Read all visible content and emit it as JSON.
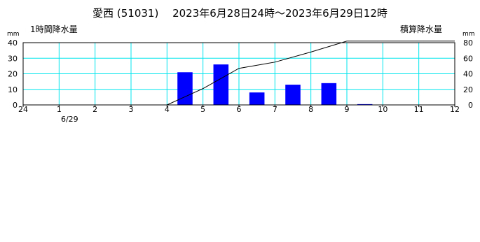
{
  "chart_data": {
    "type": "bar",
    "title": "愛西 (51031)　 2023年6月28日24時～2023年6月29日12時",
    "left_axis": {
      "unit": "mm",
      "label": "1時間降水量",
      "ticks": [
        0,
        10,
        20,
        30,
        40
      ],
      "ylim": [
        0,
        40
      ]
    },
    "right_axis": {
      "unit": "mm",
      "label": "積算降水量",
      "ticks": [
        0,
        20,
        40,
        60,
        80
      ],
      "ylim": [
        0,
        80
      ]
    },
    "x_tick_labels": [
      "24",
      "1",
      "2",
      "3",
      "4",
      "5",
      "6",
      "7",
      "8",
      "9",
      "10",
      "11",
      "12"
    ],
    "date_label": "6/29",
    "grid": true,
    "series": [
      {
        "name": "1時間降水量",
        "kind": "bar",
        "color": "#0000ff",
        "values": [
          0,
          0,
          0,
          0,
          21,
          26,
          8,
          13,
          14,
          0.5,
          0,
          0
        ]
      },
      {
        "name": "積算降水量",
        "kind": "line",
        "color": "#000000",
        "points": [
          [
            4,
            0
          ],
          [
            5,
            21
          ],
          [
            6,
            47
          ],
          [
            7,
            55
          ],
          [
            8,
            68
          ],
          [
            9,
            82
          ],
          [
            12,
            82
          ]
        ]
      }
    ]
  }
}
